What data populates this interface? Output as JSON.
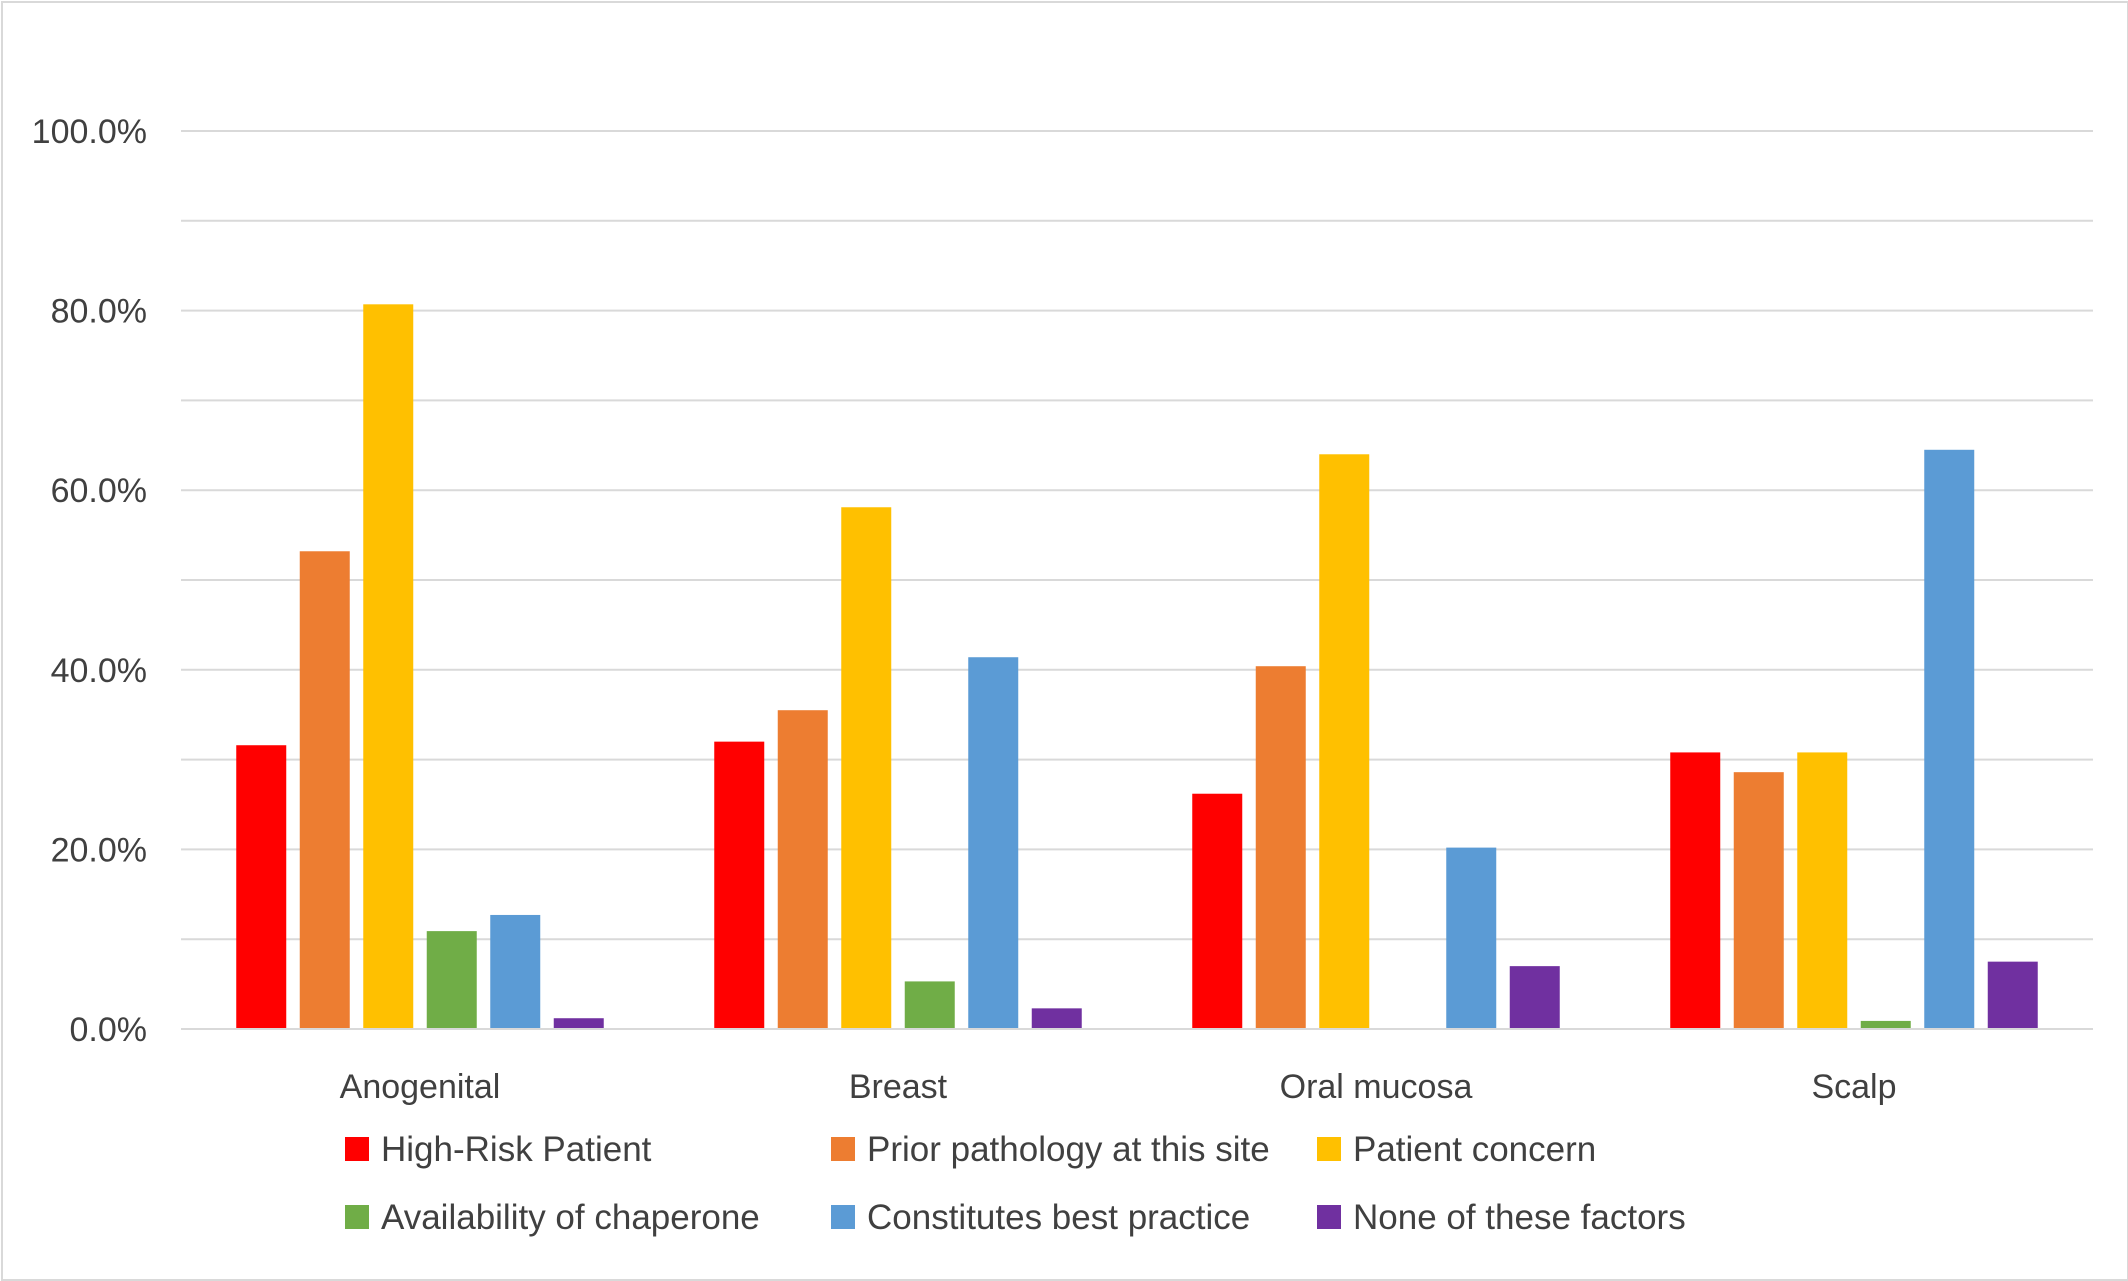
{
  "chart_data": {
    "type": "bar",
    "categories": [
      "Anogenital",
      "Breast",
      "Oral mucosa",
      "Scalp"
    ],
    "series": [
      {
        "name": "High-Risk Patient",
        "color": "#ff0000",
        "values": [
          31.6,
          32.0,
          26.2,
          30.8
        ]
      },
      {
        "name": "Prior pathology at this site",
        "color": "#ed7d31",
        "values": [
          53.2,
          35.5,
          40.4,
          28.6
        ]
      },
      {
        "name": "Patient concern",
        "color": "#ffc000",
        "values": [
          80.7,
          58.1,
          64.0,
          30.8
        ]
      },
      {
        "name": "Availability of chaperone",
        "color": "#70ad47",
        "values": [
          10.9,
          5.3,
          0.0,
          0.9
        ]
      },
      {
        "name": "Constitutes best practice",
        "color": "#5b9bd5",
        "values": [
          12.7,
          41.4,
          20.2,
          64.5
        ]
      },
      {
        "name": "None of these factors",
        "color": "#7030a0",
        "values": [
          1.2,
          2.3,
          7.0,
          7.5
        ]
      }
    ],
    "yticks": [
      "0.0%",
      "20.0%",
      "40.0%",
      "60.0%",
      "80.0%",
      "100.0%"
    ],
    "ylim": [
      0,
      100
    ],
    "grid": true,
    "legend_position": "bottom"
  }
}
